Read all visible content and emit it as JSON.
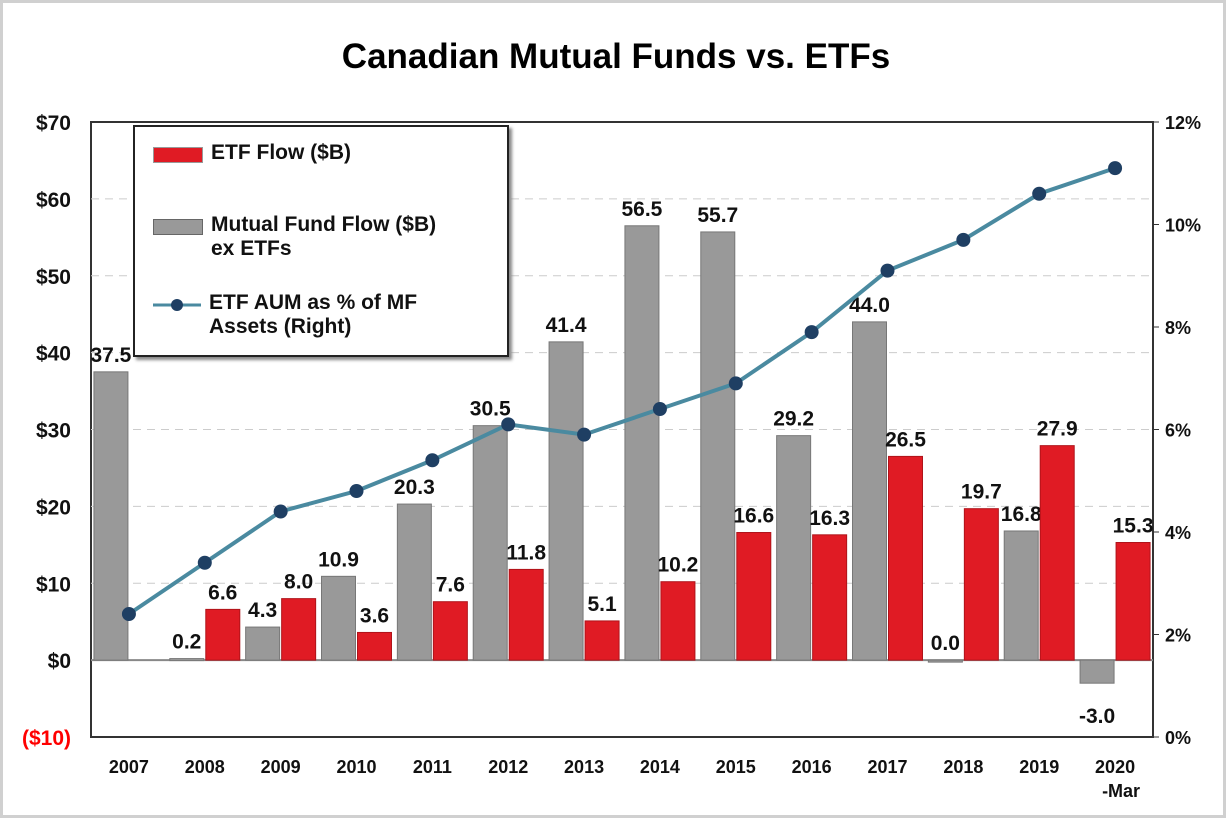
{
  "chart_data": {
    "type": "bar",
    "title": "Canadian Mutual Funds vs. ETFs",
    "categories": [
      "2007",
      "2008",
      "2009",
      "2010",
      "2011",
      "2012",
      "2013",
      "2014",
      "2015",
      "2016",
      "2017",
      "2018",
      "2019",
      "2020 -Mar"
    ],
    "category_lines": [
      [
        "2007"
      ],
      [
        "2008"
      ],
      [
        "2009"
      ],
      [
        "2010"
      ],
      [
        "2011"
      ],
      [
        "2012"
      ],
      [
        "2013"
      ],
      [
        "2014"
      ],
      [
        "2015"
      ],
      [
        "2016"
      ],
      [
        "2017"
      ],
      [
        "2018"
      ],
      [
        "2019"
      ],
      [
        "2020",
        "-Mar"
      ]
    ],
    "series": [
      {
        "name": "ETF Flow ($B)",
        "type": "bar",
        "axis": "left",
        "color": "#e01b24",
        "values": [
          null,
          6.6,
          8.0,
          3.6,
          7.6,
          11.8,
          5.1,
          10.2,
          16.6,
          16.3,
          26.5,
          19.7,
          27.9,
          15.3
        ]
      },
      {
        "name": "Mutual Fund Flow ($B) ex ETFs",
        "type": "bar",
        "axis": "left",
        "color": "#999999",
        "values": [
          37.5,
          0.2,
          4.3,
          10.9,
          20.3,
          30.5,
          41.4,
          56.5,
          55.7,
          29.2,
          44.0,
          0.0,
          16.8,
          -3.0
        ]
      },
      {
        "name": "ETF AUM as % of MF Assets (Right)",
        "type": "line",
        "axis": "right",
        "color": "#4a8aa0",
        "marker_color": "#1f3f63",
        "values": [
          2.4,
          3.4,
          4.4,
          4.8,
          5.4,
          6.1,
          5.9,
          6.4,
          6.9,
          7.9,
          9.1,
          9.7,
          10.6,
          11.1
        ]
      }
    ],
    "legend": {
      "placement": "top-left",
      "lines": [
        [
          "ETF Flow ($B)"
        ],
        [
          "Mutual Fund Flow ($B)",
          "ex ETFs"
        ],
        [
          "ETF AUM as % of MF",
          "Assets (Right)"
        ]
      ]
    },
    "y_left": {
      "range": [
        -10,
        70
      ],
      "ticks": [
        -10,
        0,
        10,
        20,
        30,
        40,
        50,
        60,
        70
      ],
      "tick_labels": [
        "($10)",
        "$0",
        "$10",
        "$20",
        "$30",
        "$40",
        "$50",
        "$60",
        "$70"
      ],
      "negative_color": "#ff0000"
    },
    "y_right": {
      "range": [
        0,
        12
      ],
      "ticks": [
        0,
        2,
        4,
        6,
        8,
        10,
        12
      ],
      "tick_labels": [
        "0%",
        "2%",
        "4%",
        "6%",
        "8%",
        "10%",
        "12%"
      ]
    },
    "grid": "horizontal dashed",
    "data_labels": {
      "ETF Flow ($B)": [
        null,
        "6.6",
        "8.0",
        "3.6",
        "7.6",
        "11.8",
        "5.1",
        "10.2",
        "16.6",
        "16.3",
        "26.5",
        "19.7",
        "27.9",
        "15.3"
      ],
      "Mutual Fund Flow ($B) ex ETFs": [
        "37.5",
        "0.2",
        "4.3",
        "10.9",
        "20.3",
        "30.5",
        "41.4",
        "56.5",
        "55.7",
        "29.2",
        "44.0",
        "0.0",
        "16.8",
        "-3.0"
      ]
    }
  }
}
